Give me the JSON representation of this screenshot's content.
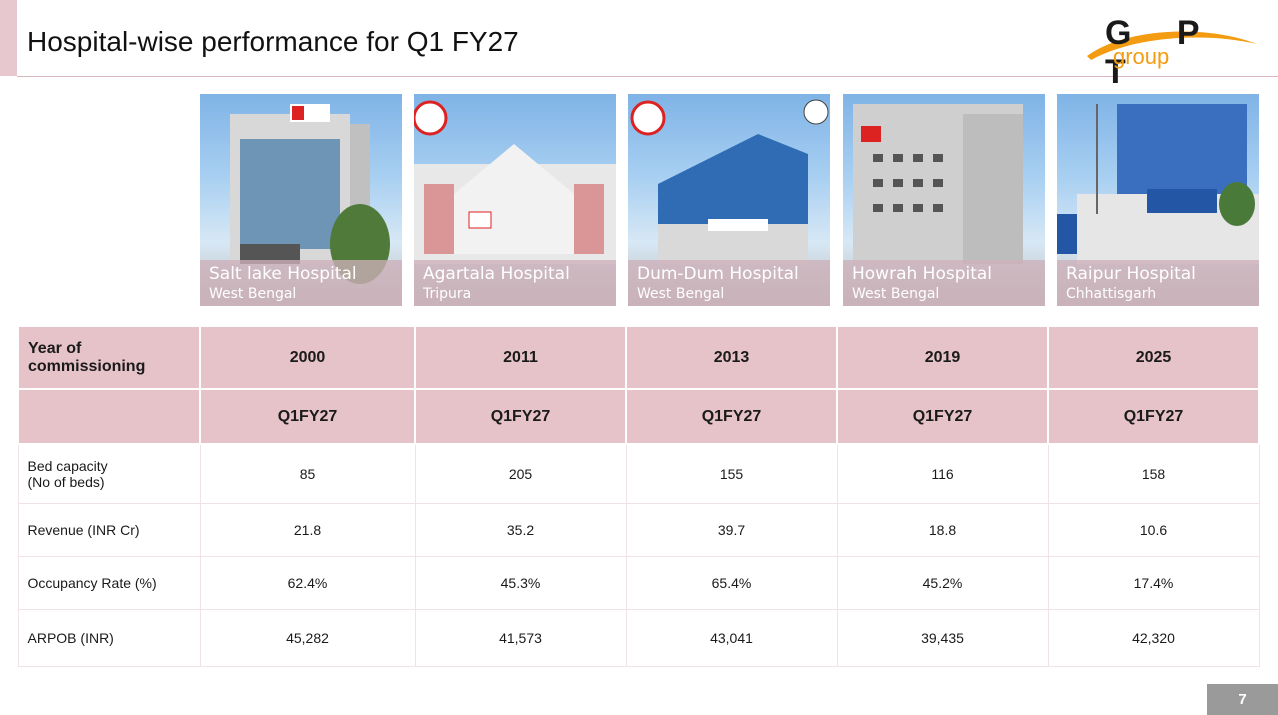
{
  "header": {
    "title": "Hospital-wise performance for Q1 FY27",
    "logo": {
      "letters": "G P T",
      "sub": "group"
    }
  },
  "hospitals": [
    {
      "name": "Salt lake Hospital",
      "state": "West Bengal",
      "year": "2000",
      "period": "Q1FY27",
      "beds": "85",
      "revenue": "21.8",
      "occupancy": "62.4%",
      "arpob": "45,282"
    },
    {
      "name": "Agartala Hospital",
      "state": "Tripura",
      "year": "2011",
      "period": "Q1FY27",
      "beds": "205",
      "revenue": "35.2",
      "occupancy": "45.3%",
      "arpob": "41,573"
    },
    {
      "name": "Dum-Dum Hospital",
      "state": "West Bengal",
      "year": "2013",
      "period": "Q1FY27",
      "beds": "155",
      "revenue": "39.7",
      "occupancy": "65.4%",
      "arpob": "43,041"
    },
    {
      "name": "Howrah Hospital",
      "state": "West Bengal",
      "year": "2019",
      "period": "Q1FY27",
      "beds": "116",
      "revenue": "18.8",
      "occupancy": "45.2%",
      "arpob": "39,435"
    },
    {
      "name": "Raipur Hospital",
      "state": "Chhattisgarh",
      "year": "2025",
      "period": "Q1FY27",
      "beds": "158",
      "revenue": "10.6",
      "occupancy": "17.4%",
      "arpob": "42,320"
    }
  ],
  "table": {
    "row_labels": {
      "year": "Year of commissioning",
      "period": "",
      "beds_line1": "Bed capacity",
      "beds_line2": "(No of beds)",
      "revenue": "Revenue (INR Cr)",
      "occupancy": "Occupancy Rate (%)",
      "arpob": "ARPOB (INR)"
    }
  },
  "footer": {
    "page_number": "7"
  },
  "colors": {
    "accent": "#e6c3c9",
    "logo_orange": "#f39c12"
  }
}
